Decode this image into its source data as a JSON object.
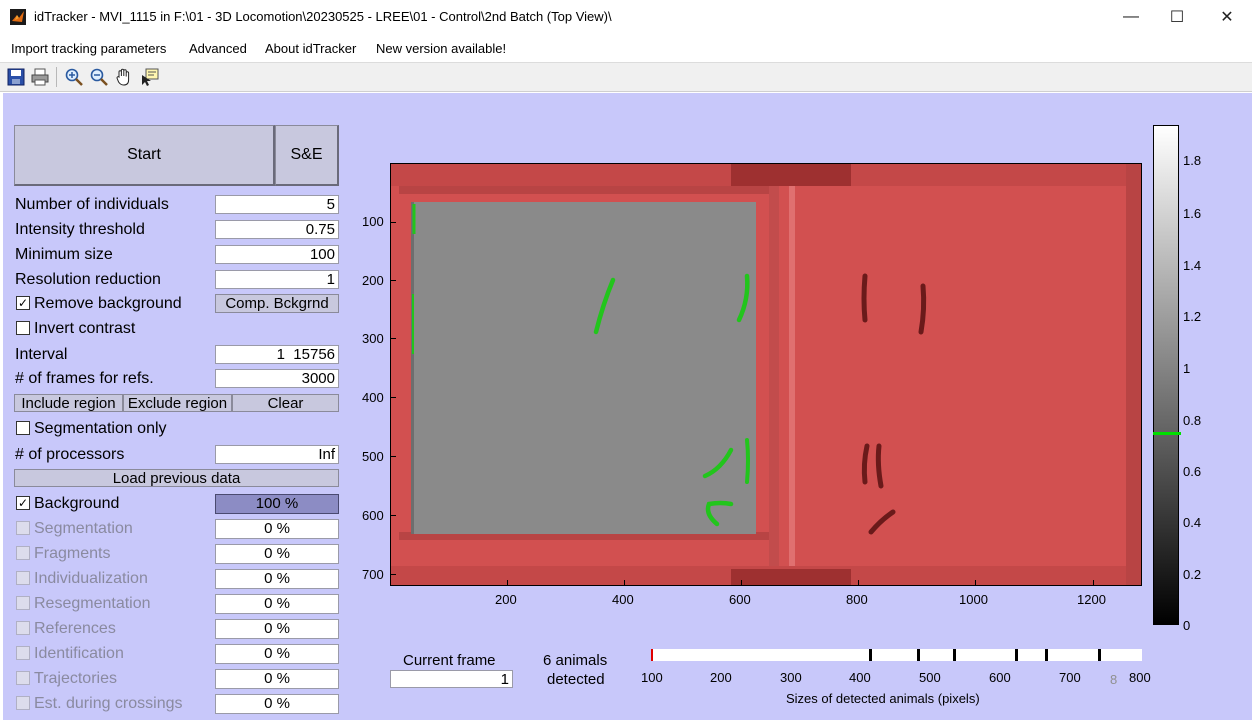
{
  "window": {
    "title": "idTracker - MVI_1115 in F:\\01 - 3D Locomotion\\20230525 - LREE\\01 - Control\\2nd Batch (Top View)\\",
    "minimize": "—",
    "maximize": "☐",
    "close": "✕"
  },
  "menu": {
    "items": [
      "Import tracking parameters",
      "Advanced",
      "About idTracker",
      "New version available!"
    ]
  },
  "toolbar": {
    "icons": [
      "save-icon",
      "print-icon",
      "zoom-in-icon",
      "zoom-out-icon",
      "pan-hand-icon",
      "data-cursor-icon"
    ]
  },
  "panel": {
    "start_label": "Start",
    "se_label": "S&E",
    "params": [
      {
        "label": "Number of individuals",
        "value": "5"
      },
      {
        "label": "Intensity threshold",
        "value": "0.75"
      },
      {
        "label": "Minimum size",
        "value": "100"
      },
      {
        "label": "Resolution reduction",
        "value": "1"
      }
    ],
    "remove_background": {
      "label": "Remove background",
      "checked": true,
      "check": "✓"
    },
    "comp_bckgrnd_label": "Comp. Bckgrnd",
    "invert_contrast": {
      "label": "Invert contrast",
      "checked": false
    },
    "interval": {
      "label": "Interval",
      "value": "1  15756"
    },
    "frames_for_refs": {
      "label": "# of frames for refs.",
      "value": "3000"
    },
    "include_region_label": "Include region",
    "exclude_region_label": "Exclude region",
    "clear_label": "Clear",
    "segmentation_only": {
      "label": "Segmentation only",
      "checked": false
    },
    "processors": {
      "label": "# of processors",
      "value": "Inf"
    },
    "load_previous_label": "Load previous data",
    "progress": [
      {
        "label": "Background",
        "value": "100 %",
        "progress": 1.0,
        "checked": true,
        "check": "✓"
      },
      {
        "label": "Segmentation",
        "value": "0 %",
        "progress": 0
      },
      {
        "label": "Fragments",
        "value": "0 %",
        "progress": 0
      },
      {
        "label": "Individualization",
        "value": "0 %",
        "progress": 0
      },
      {
        "label": "Resegmentation",
        "value": "0 %",
        "progress": 0
      },
      {
        "label": "References",
        "value": "0 %",
        "progress": 0
      },
      {
        "label": "Identification",
        "value": "0 %",
        "progress": 0
      },
      {
        "label": "Trajectories",
        "value": "0 %",
        "progress": 0
      },
      {
        "label": "Est. during crossings",
        "value": "0 %",
        "progress": 0
      }
    ]
  },
  "image_axes": {
    "x_ticks": [
      "200",
      "400",
      "600",
      "800",
      "1000",
      "1200"
    ],
    "y_ticks": [
      "100",
      "200",
      "300",
      "400",
      "500",
      "600",
      "700"
    ],
    "overlay_color": "#d94848",
    "detection_color": "#22c51c"
  },
  "colorbar": {
    "ticks": [
      "1.8",
      "1.6",
      "1.4",
      "1.2",
      "1",
      "0.8",
      "0.6",
      "0.4",
      "0.2",
      "0"
    ],
    "threshold_marker": "#00e000"
  },
  "frame": {
    "current_frame_label": "Current frame",
    "current_frame_value": "1",
    "detected_line1": "6 animals",
    "detected_line2": "detected"
  },
  "histogram": {
    "ticks": [
      "100",
      "200",
      "300",
      "400",
      "500",
      "600",
      "700",
      "800"
    ],
    "extra_label": "8",
    "xlabel": "Sizes of detected animals (pixels)"
  }
}
